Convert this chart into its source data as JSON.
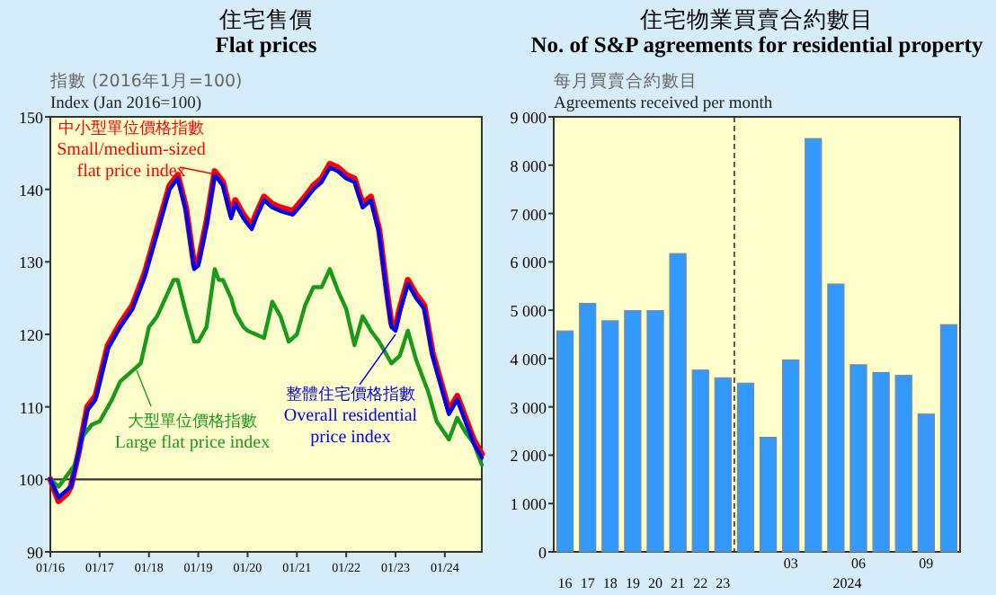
{
  "chart_data": [
    {
      "type": "line",
      "title": "住宅售價 Flat prices",
      "ylabel": "指數 (2016年1月=100) Index (Jan 2016=100)",
      "xlim": [
        "2016-01",
        "2024-10"
      ],
      "xticks": [
        {
          "value": "2016-01",
          "label": "01/16"
        },
        {
          "value": "2017-01",
          "label": "01/17"
        },
        {
          "value": "2018-01",
          "label": "01/18"
        },
        {
          "value": "2019-01",
          "label": "01/19"
        },
        {
          "value": "2020-01",
          "label": "01/20"
        },
        {
          "value": "2021-01",
          "label": "01/21"
        },
        {
          "value": "2022-01",
          "label": "01/22"
        },
        {
          "value": "2023-01",
          "label": "01/23"
        },
        {
          "value": "2024-01",
          "label": "01/24"
        }
      ],
      "ylim": [
        90,
        150
      ],
      "yticks": [
        90,
        100,
        110,
        120,
        130,
        140,
        150
      ],
      "ref_lines": [
        {
          "axis": "y",
          "value": 100,
          "color": "#333333"
        }
      ],
      "series": [
        {
          "name": "中小型單位價格指數 Small/medium-sized flat price index",
          "color": "#ff0000",
          "x": [
            "2016-01",
            "2016-03",
            "2016-05",
            "2016-06",
            "2016-08",
            "2016-10",
            "2016-12",
            "2017-03",
            "2017-06",
            "2017-09",
            "2017-12",
            "2018-03",
            "2018-06",
            "2018-08",
            "2018-10",
            "2018-12",
            "2019-01",
            "2019-03",
            "2019-05",
            "2019-07",
            "2019-09",
            "2019-10",
            "2019-12",
            "2020-02",
            "2020-03",
            "2020-05",
            "2020-07",
            "2020-09",
            "2020-12",
            "2021-03",
            "2021-05",
            "2021-07",
            "2021-09",
            "2021-11",
            "2022-01",
            "2022-03",
            "2022-05",
            "2022-07",
            "2022-09",
            "2022-11",
            "2022-12",
            "2023-01",
            "2023-02",
            "2023-04",
            "2023-06",
            "2023-08",
            "2023-10",
            "2023-12",
            "2024-02",
            "2024-04",
            "2024-06",
            "2024-08",
            "2024-10"
          ],
          "values": [
            100,
            97,
            98,
            99,
            104,
            110,
            111.5,
            118.5,
            121.5,
            124,
            128.5,
            134.5,
            140.5,
            142,
            137.5,
            129.5,
            130,
            135.5,
            142.5,
            141,
            136.5,
            138.5,
            136.5,
            135,
            136.5,
            139,
            138,
            137.5,
            137,
            139,
            140.5,
            141.5,
            143.5,
            143,
            142,
            141.5,
            138,
            139,
            134.5,
            125.5,
            121.5,
            121,
            123.5,
            127.5,
            125.5,
            124,
            117.5,
            113.5,
            109.5,
            111.5,
            108.5,
            105.5,
            103.5
          ]
        },
        {
          "name": "大型單位價格指數 Large flat price index",
          "color": "#1a9a1a",
          "x": [
            "2016-01",
            "2016-03",
            "2016-05",
            "2016-07",
            "2016-09",
            "2016-11",
            "2017-01",
            "2017-04",
            "2017-06",
            "2017-09",
            "2017-11",
            "2018-01",
            "2018-03",
            "2018-05",
            "2018-07",
            "2018-08",
            "2018-10",
            "2018-12",
            "2019-01",
            "2019-03",
            "2019-05",
            "2019-06",
            "2019-07",
            "2019-09",
            "2019-10",
            "2019-12",
            "2020-01",
            "2020-03",
            "2020-05",
            "2020-07",
            "2020-09",
            "2020-11",
            "2021-01",
            "2021-03",
            "2021-05",
            "2021-07",
            "2021-09",
            "2021-11",
            "2022-01",
            "2022-03",
            "2022-05",
            "2022-07",
            "2022-09",
            "2022-12",
            "2023-02",
            "2023-04",
            "2023-06",
            "2023-09",
            "2023-11",
            "2024-02",
            "2024-04",
            "2024-06",
            "2024-08",
            "2024-10"
          ],
          "values": [
            100,
            99,
            100.5,
            102,
            106,
            107.5,
            108,
            111,
            113.5,
            115,
            116,
            121,
            122.5,
            125,
            127.5,
            127.5,
            123,
            119,
            119,
            121,
            129,
            127.5,
            127.5,
            125,
            123,
            121,
            120.5,
            120,
            119.5,
            124.5,
            122.5,
            119,
            120,
            124,
            126.5,
            126.5,
            129,
            126,
            123.5,
            118.5,
            122.5,
            120.5,
            119,
            116,
            117,
            120.5,
            116.5,
            112,
            108,
            105.5,
            108.5,
            106.5,
            105,
            102
          ]
        },
        {
          "name": "整體住宅價格指數 Overall residential price index",
          "color": "#0000ee",
          "x": [
            "2016-01",
            "2016-03",
            "2016-05",
            "2016-06",
            "2016-08",
            "2016-10",
            "2016-12",
            "2017-03",
            "2017-06",
            "2017-09",
            "2017-12",
            "2018-03",
            "2018-06",
            "2018-08",
            "2018-10",
            "2018-12",
            "2019-01",
            "2019-03",
            "2019-05",
            "2019-07",
            "2019-09",
            "2019-10",
            "2019-12",
            "2020-02",
            "2020-03",
            "2020-05",
            "2020-07",
            "2020-09",
            "2020-12",
            "2021-03",
            "2021-05",
            "2021-07",
            "2021-09",
            "2021-11",
            "2022-01",
            "2022-03",
            "2022-05",
            "2022-07",
            "2022-09",
            "2022-11",
            "2022-12",
            "2023-01",
            "2023-02",
            "2023-04",
            "2023-06",
            "2023-08",
            "2023-10",
            "2023-12",
            "2024-02",
            "2024-04",
            "2024-06",
            "2024-08",
            "2024-10"
          ],
          "values": [
            100,
            97.5,
            98.5,
            99,
            104,
            109.5,
            111,
            118,
            121,
            123.5,
            128,
            134,
            140,
            141.5,
            137,
            129,
            129.5,
            135,
            142,
            140.5,
            136,
            138,
            136,
            134.5,
            136,
            138.5,
            137.5,
            137,
            136.5,
            138.5,
            140,
            141,
            143,
            142.5,
            141.5,
            141,
            137.5,
            138.5,
            134,
            125,
            121,
            120.5,
            123,
            127,
            125,
            123.5,
            117,
            113,
            109,
            111,
            108,
            105,
            103
          ]
        }
      ]
    },
    {
      "type": "bar",
      "title": "住宅物業買賣合約數目 No. of S&P agreements for residential property",
      "ylabel": "每月買賣合約數目 Agreements received per month",
      "categories": [
        "16",
        "17",
        "18",
        "19",
        "20",
        "21",
        "22",
        "23",
        null,
        null,
        "03",
        null,
        null,
        "06",
        null,
        null,
        "09",
        null
      ],
      "values": [
        4570,
        5140,
        4780,
        4990,
        4990,
        6170,
        3760,
        3600,
        3490,
        2370,
        3970,
        8550,
        5540,
        3870,
        3710,
        3650,
        2850,
        4700
      ],
      "color": "#3399ff",
      "ylim": [
        0,
        9000
      ],
      "yticks": [
        0,
        {
          "value": 1000,
          "label": "1 000"
        },
        {
          "value": 2000,
          "label": "2 000"
        },
        {
          "value": 3000,
          "label": "3 000"
        },
        {
          "value": 4000,
          "label": "4 000"
        },
        {
          "value": 5000,
          "label": "5 000"
        },
        {
          "value": 6000,
          "label": "6 000"
        },
        {
          "value": 7000,
          "label": "7 000"
        },
        {
          "value": 8000,
          "label": "8 000"
        },
        {
          "value": 9000,
          "label": "9 000"
        }
      ],
      "annotations": [
        "2024"
      ]
    }
  ]
}
